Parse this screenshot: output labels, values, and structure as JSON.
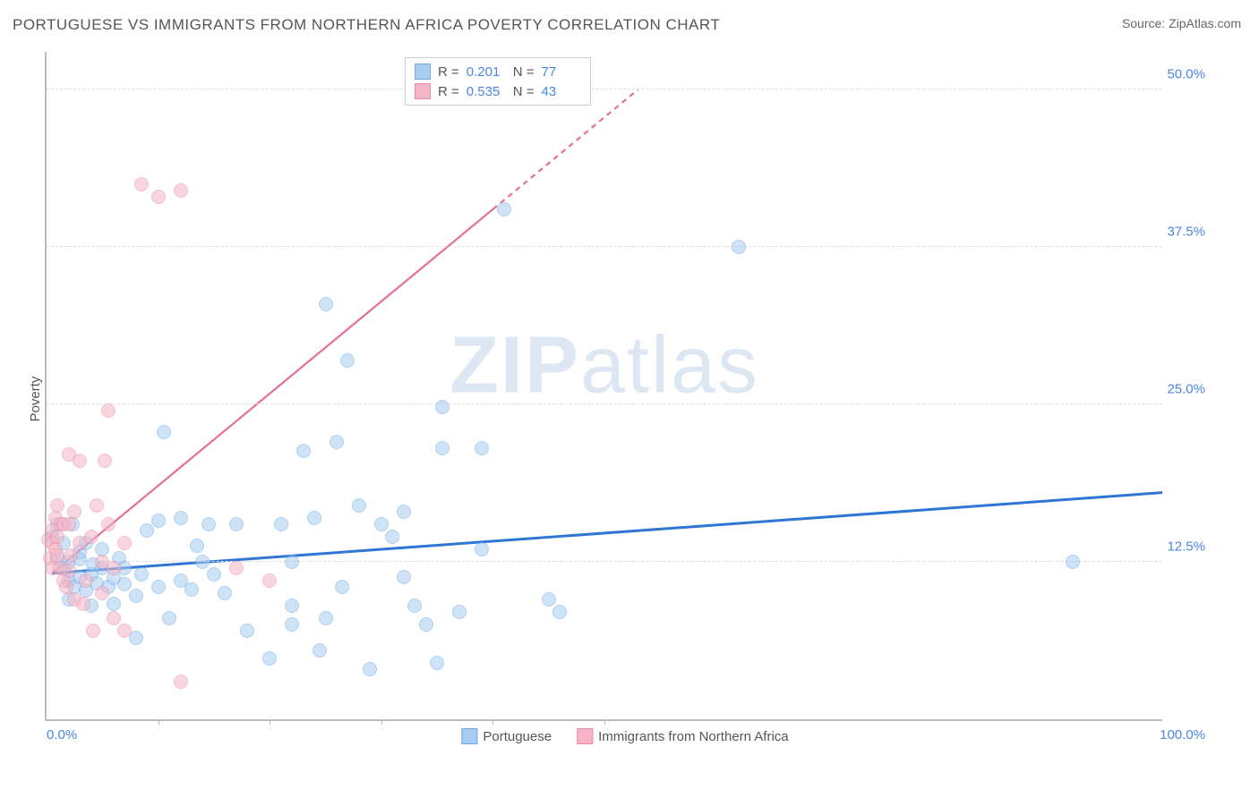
{
  "title": "PORTUGUESE VS IMMIGRANTS FROM NORTHERN AFRICA POVERTY CORRELATION CHART",
  "source_prefix": "Source: ",
  "source": "ZipAtlas.com",
  "ylabel": "Poverty",
  "watermark": {
    "bold": "ZIP",
    "rest": "atlas"
  },
  "chart": {
    "type": "scatter",
    "background_color": "#ffffff",
    "grid_color": "#dddddd",
    "axis_color": "#bbbbbb",
    "tick_color": "#4a86e8",
    "xlim": [
      0,
      100
    ],
    "ylim": [
      0,
      53
    ],
    "x_ticks_minor": [
      10,
      20,
      30,
      40,
      50
    ],
    "x_tick_labels": {
      "min": "0.0%",
      "max": "100.0%"
    },
    "y_ticks": [
      {
        "v": 12.5,
        "label": "12.5%"
      },
      {
        "v": 25.0,
        "label": "25.0%"
      },
      {
        "v": 37.5,
        "label": "37.5%"
      },
      {
        "v": 50.0,
        "label": "50.0%"
      }
    ],
    "point_radius": 7,
    "point_opacity": 0.55,
    "series": [
      {
        "name": "Portuguese",
        "fill": "#a9cdf0",
        "stroke": "#6fa8e8",
        "trend_color": "#2e75d6",
        "trend_width": 3,
        "R": "0.201",
        "N": "77",
        "trend": {
          "x1": 0.5,
          "y1": 11.6,
          "x2": 100,
          "y2": 18.0
        },
        "points": [
          [
            0.5,
            14.5
          ],
          [
            1,
            12.8
          ],
          [
            1,
            15.5
          ],
          [
            1.5,
            12
          ],
          [
            1.5,
            14
          ],
          [
            2,
            9.5
          ],
          [
            2,
            11
          ],
          [
            2,
            12.5
          ],
          [
            2.3,
            15.5
          ],
          [
            2.5,
            10.5
          ],
          [
            3,
            11.3
          ],
          [
            3,
            12.7
          ],
          [
            3,
            13.3
          ],
          [
            3.5,
            10.2
          ],
          [
            3.5,
            14
          ],
          [
            4,
            9
          ],
          [
            4,
            11.5
          ],
          [
            4.2,
            12.3
          ],
          [
            4.5,
            10.8
          ],
          [
            5,
            12
          ],
          [
            5,
            13.5
          ],
          [
            5.5,
            10.5
          ],
          [
            6,
            11.2
          ],
          [
            6,
            9.2
          ],
          [
            6.5,
            12.8
          ],
          [
            7,
            10.7
          ],
          [
            7,
            12
          ],
          [
            8,
            6.5
          ],
          [
            8,
            9.8
          ],
          [
            8.5,
            11.5
          ],
          [
            9,
            15
          ],
          [
            10,
            10.5
          ],
          [
            10,
            15.8
          ],
          [
            10.5,
            22.8
          ],
          [
            11,
            8
          ],
          [
            12,
            11
          ],
          [
            12,
            16
          ],
          [
            13,
            10.3
          ],
          [
            13.5,
            13.8
          ],
          [
            14,
            12.5
          ],
          [
            14.5,
            15.5
          ],
          [
            15,
            11.5
          ],
          [
            16,
            10
          ],
          [
            17,
            15.5
          ],
          [
            18,
            7
          ],
          [
            20,
            4.8
          ],
          [
            21,
            15.5
          ],
          [
            22,
            7.5
          ],
          [
            22,
            9
          ],
          [
            22,
            12.5
          ],
          [
            23,
            21.3
          ],
          [
            24,
            16
          ],
          [
            24.5,
            5.5
          ],
          [
            25,
            33
          ],
          [
            25,
            8
          ],
          [
            26,
            22
          ],
          [
            26.5,
            10.5
          ],
          [
            27,
            28.5
          ],
          [
            28,
            17
          ],
          [
            29,
            4
          ],
          [
            30,
            15.5
          ],
          [
            31,
            14.5
          ],
          [
            32,
            11.3
          ],
          [
            32,
            16.5
          ],
          [
            33,
            9
          ],
          [
            34,
            7.5
          ],
          [
            35,
            4.5
          ],
          [
            35.5,
            21.5
          ],
          [
            35.5,
            24.8
          ],
          [
            37,
            8.5
          ],
          [
            39,
            13.5
          ],
          [
            39,
            21.5
          ],
          [
            41,
            40.5
          ],
          [
            45,
            9.5
          ],
          [
            46,
            8.5
          ],
          [
            62,
            37.5
          ],
          [
            92,
            12.5
          ]
        ]
      },
      {
        "name": "Immigrants from Northern Africa",
        "fill": "#f5b5c6",
        "stroke": "#e98aa6",
        "trend_color": "#e76f96",
        "trend_width": 2.2,
        "R": "0.535",
        "N": "43",
        "trend_solid": {
          "x1": 0.5,
          "y1": 11.6,
          "x2": 40,
          "y2": 40.5
        },
        "trend_dash": {
          "x1": 40,
          "y1": 40.5,
          "x2": 53,
          "y2": 50
        },
        "points": [
          [
            0.2,
            14.3
          ],
          [
            0.3,
            12.8
          ],
          [
            0.5,
            14
          ],
          [
            0.5,
            15
          ],
          [
            0.6,
            12
          ],
          [
            0.8,
            13.5
          ],
          [
            0.8,
            16
          ],
          [
            1,
            13
          ],
          [
            1,
            14.5
          ],
          [
            1,
            17
          ],
          [
            1.2,
            12
          ],
          [
            1.3,
            15.5
          ],
          [
            1.5,
            11
          ],
          [
            1.5,
            15.5
          ],
          [
            1.8,
            10.5
          ],
          [
            2,
            11.8
          ],
          [
            2,
            15.5
          ],
          [
            2,
            21
          ],
          [
            2.2,
            13
          ],
          [
            2.5,
            9.5
          ],
          [
            2.5,
            16.5
          ],
          [
            3,
            14
          ],
          [
            3,
            20.5
          ],
          [
            3.3,
            9.2
          ],
          [
            3.5,
            11
          ],
          [
            4,
            14.5
          ],
          [
            4.2,
            7
          ],
          [
            4.5,
            17
          ],
          [
            5,
            10
          ],
          [
            5,
            12.5
          ],
          [
            5.2,
            20.5
          ],
          [
            5.5,
            15.5
          ],
          [
            5.5,
            24.5
          ],
          [
            6,
            8
          ],
          [
            6,
            12
          ],
          [
            7,
            7
          ],
          [
            7,
            14
          ],
          [
            8.5,
            42.5
          ],
          [
            10,
            41.5
          ],
          [
            12,
            3
          ],
          [
            12,
            42
          ],
          [
            17,
            12
          ],
          [
            20,
            11
          ]
        ]
      }
    ],
    "legend_stat": {
      "rows": [
        {
          "swatch_i": 0,
          "R_label": "R  =",
          "N_label": "N  ="
        },
        {
          "swatch_i": 1,
          "R_label": "R  =",
          "N_label": "N  ="
        }
      ]
    }
  },
  "label_fontsize": 15,
  "title_fontsize": 17
}
